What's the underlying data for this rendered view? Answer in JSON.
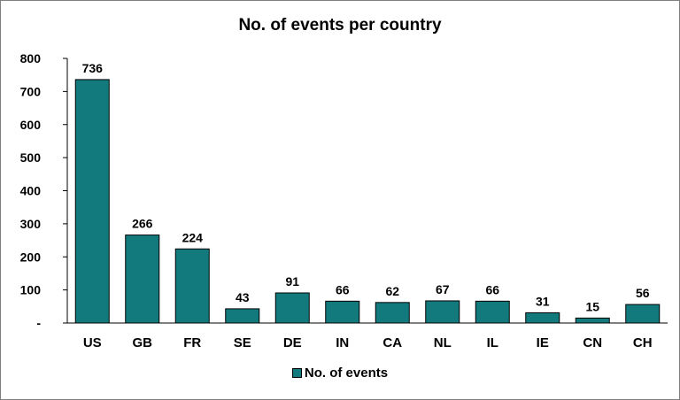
{
  "chart_data": {
    "type": "bar",
    "title": "No. of events per country",
    "xlabel": "",
    "ylabel": "",
    "categories": [
      "US",
      "GB",
      "FR",
      "SE",
      "DE",
      "IN",
      "CA",
      "NL",
      "IL",
      "IE",
      "CN",
      "CH"
    ],
    "series": [
      {
        "name": "No. of events",
        "values": [
          736,
          266,
          224,
          43,
          91,
          66,
          62,
          67,
          66,
          31,
          15,
          56
        ],
        "color": "#127A7D"
      }
    ],
    "ylim": [
      0,
      800
    ],
    "yticks": [
      0,
      100,
      200,
      300,
      400,
      500,
      600,
      700,
      800
    ],
    "ytick_labels": [
      "-",
      "100",
      "200",
      "300",
      "400",
      "500",
      "600",
      "700",
      "800"
    ],
    "data_labels": true,
    "grid": false,
    "legend_position": "bottom"
  }
}
